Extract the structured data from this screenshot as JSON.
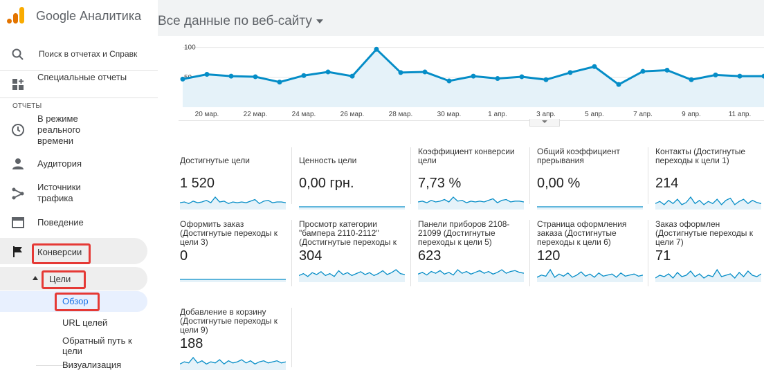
{
  "app": {
    "title": "Google Аналитика",
    "view_selector": "Все данные по веб-сайту"
  },
  "search": {
    "placeholder": "Поиск в отчетах и Справк"
  },
  "sidebar": {
    "custom_reports": "Специальные отчеты",
    "section_reports": "ОТЧЕТЫ",
    "realtime": "В режиме реального времени",
    "audience": "Аудитория",
    "acquisition": "Источники трафика",
    "behavior": "Поведение",
    "conversions": "Конверсии",
    "goals": "Цели",
    "overview": "Обзор",
    "goal_urls": "URL целей",
    "reverse_path": "Обратный путь к цели",
    "visualization": "Визуализация"
  },
  "chart_data": {
    "type": "line",
    "x": [
      "19 мар.",
      "20 мар.",
      "21 мар.",
      "22 мар.",
      "23 мар.",
      "24 мар.",
      "25 мар.",
      "26 мар.",
      "27 мар.",
      "28 мар.",
      "29 мар.",
      "30 мар.",
      "31 мар.",
      "1 апр.",
      "2 апр.",
      "3 апр.",
      "4 апр.",
      "5 апр.",
      "6 апр.",
      "7 апр.",
      "8 апр.",
      "9 апр.",
      "10 апр.",
      "11 апр.",
      "12 апр."
    ],
    "tick_labels": [
      "20 мар.",
      "22 мар.",
      "24 мар.",
      "26 мар.",
      "28 мар.",
      "30 мар.",
      "1 апр.",
      "3 апр.",
      "5 апр.",
      "7 апр.",
      "9 апр.",
      "11 апр."
    ],
    "y_ticks": [
      "100",
      "50"
    ],
    "ylim": [
      0,
      110
    ],
    "series": [
      {
        "values": [
          47,
          55,
          52,
          51,
          42,
          53,
          59,
          52,
          97,
          58,
          59,
          44,
          52,
          48,
          51,
          46,
          58,
          68,
          38,
          60,
          62,
          46,
          54,
          52,
          52
        ]
      }
    ],
    "color": "#058dc7",
    "fill": "#e5f2f9",
    "grid": true
  },
  "tiles": [
    {
      "label": "Достигнутые цели",
      "value": "1 520",
      "spark": [
        5,
        6,
        4,
        7,
        5,
        6,
        8,
        5,
        12,
        6,
        7,
        4,
        6,
        5,
        6,
        5,
        7,
        9,
        4,
        7,
        8,
        5,
        6,
        6,
        5
      ]
    },
    {
      "label": "Ценность цели",
      "value": "0,00 грн.",
      "spark": [
        0,
        0,
        0,
        0,
        0,
        0,
        0,
        0,
        0,
        0,
        0,
        0,
        0,
        0,
        0,
        0,
        0,
        0,
        0,
        0,
        0,
        0,
        0,
        0,
        0
      ]
    },
    {
      "label": "Коэффициент конверсии цели",
      "value": "7,73 %",
      "spark": [
        6,
        7,
        5,
        8,
        6,
        7,
        9,
        6,
        12,
        7,
        8,
        5,
        7,
        6,
        7,
        6,
        8,
        10,
        5,
        8,
        9,
        6,
        7,
        7,
        6
      ]
    },
    {
      "label": "Общий коэффициент прерывания",
      "value": "0,00 %",
      "spark": [
        0,
        0,
        0,
        0,
        0,
        0,
        0,
        0,
        0,
        0,
        0,
        0,
        0,
        0,
        0,
        0,
        0,
        0,
        0,
        0,
        0,
        0,
        0,
        0,
        0
      ]
    },
    {
      "label": "Контакты (Достигнутые переходы к цели 1)",
      "value": "214",
      "spark": [
        3,
        5,
        2,
        6,
        3,
        7,
        2,
        4,
        9,
        3,
        6,
        2,
        5,
        3,
        7,
        2,
        6,
        8,
        2,
        5,
        7,
        3,
        6,
        4,
        3
      ]
    },
    {
      "label": "Оформить заказ (Достигнутые переходы к цели 3)",
      "value": "0",
      "spark": [
        0,
        0,
        0,
        0,
        0,
        0,
        0,
        0,
        0,
        0,
        0,
        0,
        0,
        0,
        0,
        0,
        0,
        0,
        0,
        0,
        0,
        0,
        0,
        0,
        0
      ]
    },
    {
      "label": "Просмотр категории \"бампера 2110-2112\" (Достигнутые переходы к цели 4)",
      "value": "304",
      "spark": [
        4,
        6,
        3,
        7,
        5,
        8,
        4,
        6,
        3,
        9,
        5,
        7,
        4,
        6,
        8,
        5,
        7,
        4,
        6,
        9,
        5,
        7,
        10,
        6,
        5
      ]
    },
    {
      "label": "Панели приборов 2108-21099 (Достигнутые переходы к цели 5)",
      "value": "623",
      "spark": [
        6,
        8,
        5,
        9,
        7,
        10,
        6,
        8,
        5,
        11,
        7,
        9,
        6,
        8,
        10,
        7,
        9,
        6,
        8,
        11,
        7,
        9,
        10,
        8,
        7
      ]
    },
    {
      "label": "Страница оформления заказа (Достигнутые переходы к цели 6)",
      "value": "120",
      "spark": [
        2,
        4,
        3,
        9,
        2,
        5,
        3,
        6,
        2,
        4,
        7,
        3,
        5,
        2,
        6,
        3,
        4,
        5,
        2,
        6,
        3,
        4,
        5,
        3,
        4
      ]
    },
    {
      "label": "Заказ оформлен (Достигнутые переходы к цели 7)",
      "value": "71",
      "spark": [
        1,
        3,
        2,
        4,
        1,
        5,
        2,
        3,
        6,
        2,
        4,
        1,
        3,
        2,
        7,
        2,
        3,
        4,
        1,
        5,
        2,
        6,
        3,
        2,
        4
      ]
    },
    {
      "label": "Добавление в корзину (Достигнутые переходы к цели 9)",
      "value": "188",
      "spark": [
        3,
        5,
        4,
        9,
        4,
        6,
        3,
        5,
        4,
        7,
        3,
        6,
        4,
        5,
        7,
        4,
        6,
        3,
        5,
        6,
        4,
        5,
        6,
        4,
        5
      ]
    }
  ]
}
